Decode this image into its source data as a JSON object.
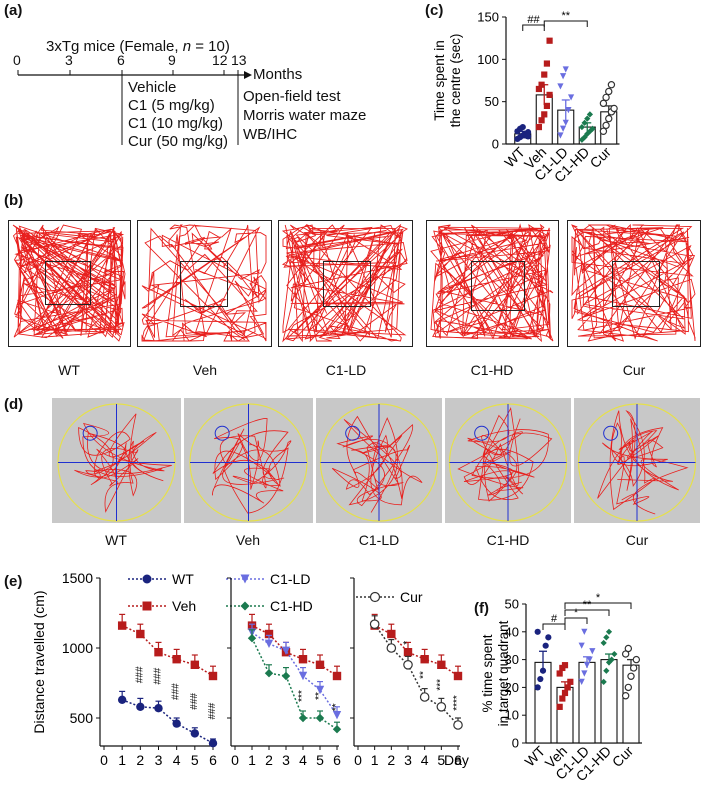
{
  "panels": {
    "a": "(a)",
    "b": "(b)",
    "c": "(c)",
    "d": "(d)",
    "e": "(e)",
    "f": "(f)"
  },
  "timeline": {
    "title": "3xTg mice (Female, ",
    "title_n": "n",
    "title_end": " = 10)",
    "ticks": [
      "0",
      "3",
      "6",
      "9",
      "12",
      "13"
    ],
    "unit": "Months",
    "treatments": [
      "Vehicle",
      "C1 (5 mg/kg)",
      "C1 (10 mg/kg)",
      "Cur (50 mg/kg)"
    ],
    "tests": [
      "Open-field test",
      "Morris water maze",
      "WB/IHC"
    ]
  },
  "groups": [
    "WT",
    "Veh",
    "C1-LD",
    "C1-HD",
    "Cur"
  ],
  "colors": {
    "WT": "#1a237e",
    "Veh": "#b71c1c",
    "C1-LD": "#6a6ee0",
    "C1-HD": "#1b7a4f",
    "Cur": "#333333",
    "track": "#e8201e"
  },
  "chart_data": [
    {
      "id": "c",
      "type": "bar",
      "ylabel": "Time spent in the centre (sec)",
      "ylim": [
        0,
        150
      ],
      "yticks": [
        "0",
        "50",
        "100",
        "150"
      ],
      "categories": [
        "WT",
        "Veh",
        "C1-LD",
        "C1-HD",
        "Cur"
      ],
      "values": [
        12,
        58,
        40,
        20,
        38
      ],
      "errors": [
        3,
        12,
        12,
        5,
        7
      ],
      "points": [
        [
          6,
          8,
          10,
          12,
          14,
          15,
          18,
          20,
          10,
          9
        ],
        [
          20,
          28,
          35,
          45,
          58,
          65,
          70,
          82,
          95,
          122
        ],
        [
          10,
          18,
          25,
          40,
          55,
          68,
          80,
          88
        ],
        [
          5,
          8,
          12,
          15,
          18,
          20,
          25,
          30,
          35
        ],
        [
          15,
          22,
          30,
          38,
          42,
          48,
          55,
          62,
          70
        ]
      ],
      "annotations": [
        "##",
        "**"
      ]
    },
    {
      "id": "e",
      "type": "line",
      "ylabel": "Distance travelled (cm)",
      "xlabel": "Day",
      "ylim": [
        300,
        1500
      ],
      "yticks": [
        "500",
        "1000",
        "1500"
      ],
      "x": [
        1,
        2,
        3,
        4,
        5,
        6
      ],
      "xticks": [
        "0",
        "1",
        "2",
        "3",
        "4",
        "5",
        "6"
      ],
      "subplots": [
        {
          "series": [
            {
              "name": "WT",
              "values": [
                630,
                580,
                570,
                460,
                390,
                320
              ],
              "errors": [
                60,
                60,
                50,
                40,
                40,
                30
              ]
            },
            {
              "name": "Veh",
              "values": [
                1160,
                1100,
                970,
                920,
                880,
                800
              ],
              "errors": [
                80,
                70,
                70,
                70,
                70,
                70
              ]
            }
          ],
          "marks": [
            "###",
            "###",
            "###",
            "###",
            "###"
          ]
        },
        {
          "series": [
            {
              "name": "Veh",
              "values": [
                1160,
                1100,
                970,
                920,
                880,
                800
              ],
              "errors": [
                80,
                70,
                70,
                70,
                70,
                70
              ]
            },
            {
              "name": "C1-LD",
              "values": [
                1110,
                1030,
                980,
                800,
                700,
                520
              ],
              "errors": [
                60,
                60,
                60,
                60,
                60,
                60
              ]
            },
            {
              "name": "C1-HD",
              "values": [
                1070,
                820,
                800,
                500,
                500,
                420
              ],
              "errors": [
                60,
                60,
                60,
                50,
                50,
                50
              ]
            }
          ],
          "marks": [
            "***",
            "**",
            "**"
          ]
        },
        {
          "series": [
            {
              "name": "Veh",
              "values": [
                1160,
                1100,
                970,
                920,
                880,
                800
              ],
              "errors": [
                80,
                70,
                70,
                70,
                70,
                70
              ]
            },
            {
              "name": "Cur",
              "values": [
                1170,
                1000,
                880,
                650,
                580,
                450
              ],
              "errors": [
                60,
                60,
                60,
                60,
                60,
                50
              ]
            }
          ],
          "marks": [
            "*",
            "**",
            "***",
            "****"
          ]
        }
      ]
    },
    {
      "id": "f",
      "type": "bar",
      "ylabel": "% time spent in target quadrant",
      "ylim": [
        0,
        50
      ],
      "yticks": [
        "0",
        "10",
        "20",
        "30",
        "40",
        "50"
      ],
      "categories": [
        "WT",
        "Veh",
        "C1-LD",
        "C1-HD",
        "Cur"
      ],
      "values": [
        29,
        20,
        29,
        30,
        28
      ],
      "errors": [
        4,
        2,
        2,
        2,
        2
      ],
      "points": [
        [
          20,
          23,
          26,
          35,
          38,
          40
        ],
        [
          13,
          16,
          18,
          20,
          22,
          25,
          27,
          28
        ],
        [
          22,
          25,
          28,
          30,
          33,
          35,
          40
        ],
        [
          22,
          26,
          29,
          30,
          32,
          36,
          38,
          40
        ],
        [
          17,
          20,
          24,
          27,
          30,
          32,
          34
        ]
      ],
      "annotations": [
        "#",
        "*",
        "**",
        "*"
      ]
    }
  ]
}
